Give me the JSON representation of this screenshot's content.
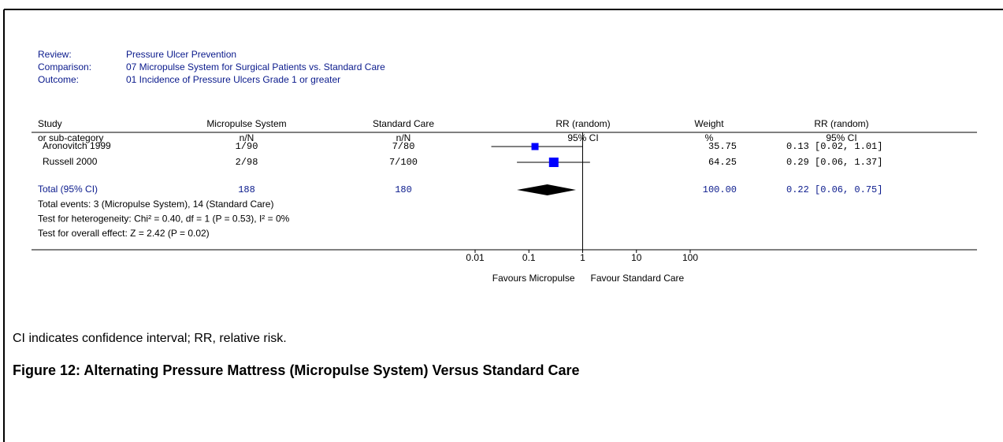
{
  "review": {
    "labels": [
      "Review:",
      "Comparison:",
      "Outcome:"
    ],
    "values": [
      "Pressure Ulcer Prevention",
      "07 Micropulse System for Surgical Patients vs. Standard Care",
      "01 Incidence of Pressure Ulcers Grade 1 or greater"
    ]
  },
  "chart_data": {
    "type": "forest",
    "headers": [
      [
        "Study",
        "or sub-category"
      ],
      [
        "Micropulse System",
        "n/N"
      ],
      [
        "Standard Care",
        "n/N"
      ],
      [
        "RR (random)",
        "95% CI"
      ],
      [
        "Weight",
        "%"
      ],
      [
        "RR (random)",
        "95% CI"
      ]
    ],
    "studies": [
      {
        "name": "Aronovitch 1999",
        "treatment": "1/90",
        "control": "7/80",
        "weight": 35.75,
        "rr": 0.13,
        "ci": [
          0.02,
          1.01
        ],
        "rr_label": "0.13 [0.02, 1.01]"
      },
      {
        "name": "Russell 2000",
        "treatment": "2/98",
        "control": "7/100",
        "weight": 64.25,
        "rr": 0.29,
        "ci": [
          0.06,
          1.37
        ],
        "rr_label": "0.29 [0.06, 1.37]"
      }
    ],
    "total": {
      "name": "Total (95% CI)",
      "treatment": 188,
      "control": 180,
      "weight": 100,
      "weight_label": "100.00",
      "rr": 0.22,
      "ci": [
        0.06,
        0.75
      ],
      "rr_label": "0.22 [0.06, 0.75]"
    },
    "notes": [
      "Total events: 3 (Micropulse System), 14 (Standard Care)",
      "Test for heterogeneity: Chi² = 0.40, df = 1 (P = 0.53), I² = 0%",
      "Test for overall effect: Z = 2.42 (P = 0.02)"
    ],
    "log": true,
    "xlim": [
      0.01,
      100
    ],
    "xticks": [
      0.01,
      0.1,
      1,
      10,
      100
    ],
    "favours": [
      "Favours Micropulse",
      "Favour Standard Care"
    ],
    "color": "#0000ff"
  },
  "caption": "CI indicates confidence interval; RR, relative risk.",
  "figure_title": "Figure 12:  Alternating Pressure Mattress (Micropulse System) Versus Standard Care"
}
